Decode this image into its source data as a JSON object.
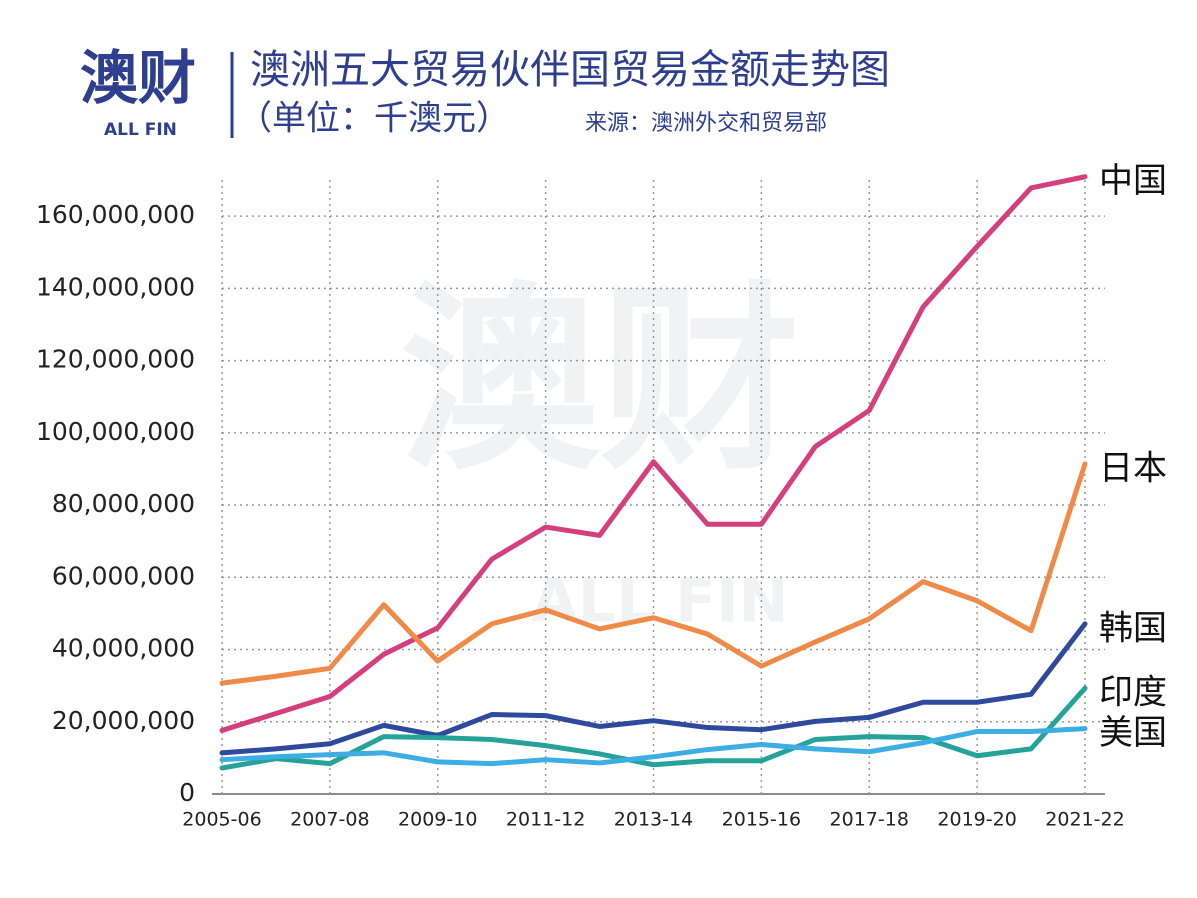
{
  "brand": {
    "logo": "澳财",
    "logo_sub": "ALL FIN"
  },
  "chart_data": {
    "type": "line",
    "title": "澳洲五大贸易伙伴国贸易金额走势图",
    "subtitle": "（单位：千澳元）",
    "source": "来源：澳洲外交和贸易部",
    "categories": [
      "2005-06",
      null,
      "2007-08",
      null,
      "2009-10",
      null,
      "2011-12",
      null,
      "2013-14",
      null,
      "2015-16",
      null,
      "2017-18",
      null,
      "2019-20",
      null,
      "2021-22"
    ],
    "series": [
      {
        "name": "中国",
        "color": "#d63f7e",
        "values": [
          17.6,
          22.3,
          27.0,
          38.7,
          46.0,
          65.0,
          73.9,
          71.6,
          92.0,
          74.7,
          74.7,
          96.2,
          106.2,
          134.9,
          151.6,
          167.8,
          170.9
        ]
      },
      {
        "name": "日本",
        "color": "#ef8a47",
        "values": [
          30.7,
          32.6,
          34.8,
          52.4,
          36.8,
          47.1,
          51.0,
          45.7,
          48.8,
          44.3,
          35.4,
          42.1,
          48.5,
          58.8,
          53.5,
          45.2,
          91.4
        ]
      },
      {
        "name": "韩国",
        "color": "#2e4a9c",
        "values": [
          11.4,
          12.5,
          13.9,
          19.0,
          16.2,
          22.0,
          21.7,
          18.7,
          20.3,
          18.4,
          17.8,
          20.1,
          21.2,
          25.4,
          25.4,
          27.6,
          47.1
        ]
      },
      {
        "name": "印度",
        "color": "#25a39b",
        "values": [
          7.2,
          9.8,
          8.4,
          15.9,
          15.6,
          15.1,
          13.4,
          11.1,
          8.1,
          9.2,
          9.2,
          15.1,
          15.9,
          15.6,
          10.6,
          12.5,
          29.3
        ]
      },
      {
        "name": "美国",
        "color": "#3daee3",
        "values": [
          9.5,
          10.3,
          10.9,
          11.4,
          8.9,
          8.4,
          9.5,
          8.6,
          10.3,
          12.3,
          13.7,
          12.5,
          11.7,
          14.2,
          17.3,
          17.3,
          18.1
        ]
      }
    ],
    "ylim": [
      0,
      170
    ],
    "yticks": [
      0,
      {
        "value": 20,
        "label": "20,000,000"
      },
      {
        "value": 40,
        "label": "40,000,000"
      },
      {
        "value": 60,
        "label": "60,000,000"
      },
      {
        "value": 80,
        "label": "80,000,000"
      },
      {
        "value": 100,
        "label": "100,000,000"
      },
      {
        "value": 120,
        "label": "120,000,000"
      },
      {
        "value": 140,
        "label": "140,000,000"
      },
      {
        "value": 160,
        "label": "160,000,000"
      }
    ],
    "grid": true
  }
}
